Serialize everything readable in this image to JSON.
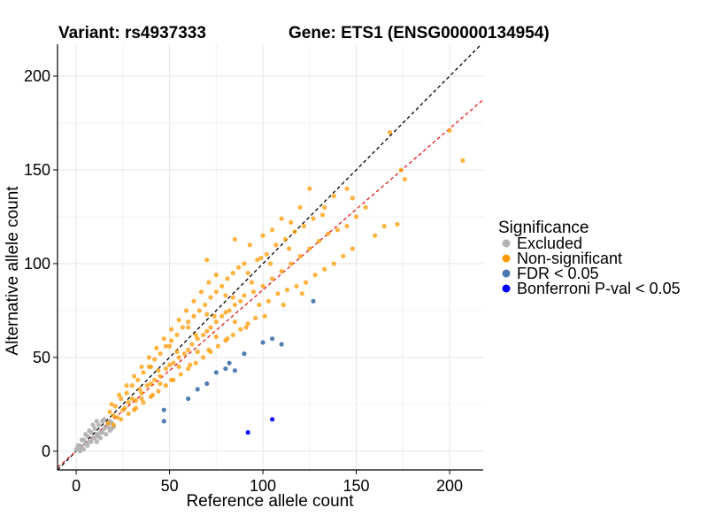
{
  "chart_data": {
    "type": "scatter",
    "title_left": "Variant: rs4937333",
    "title_right": "Gene: ETS1 (ENSG00000134954)",
    "xlabel": "Reference allele count",
    "ylabel": "Alternative allele count",
    "xlim": [
      -10,
      218
    ],
    "ylim": [
      -10,
      217
    ],
    "xticks": [
      0,
      50,
      100,
      150,
      200
    ],
    "yticks": [
      0,
      50,
      100,
      150,
      200
    ],
    "grid": true,
    "reference_lines": [
      {
        "name": "identity",
        "slope": 1.0,
        "intercept": 0,
        "color": "#000000",
        "dash": "dashed"
      },
      {
        "name": "fitted",
        "slope": 0.86,
        "intercept": 0,
        "color": "#e41a1c",
        "dash": "dashed"
      }
    ],
    "legend": {
      "title": "Significance",
      "position": "right",
      "entries": [
        {
          "label": "Excluded",
          "color": "#b3b3b3"
        },
        {
          "label": "Non-significant",
          "color": "#ff9900"
        },
        {
          "label": "FDR < 0.05",
          "color": "#4a78b0"
        },
        {
          "label": "Bonferroni P-val < 0.05",
          "color": "#0000ff"
        }
      ]
    },
    "series": [
      {
        "name": "Excluded",
        "color": "#b3b3b3",
        "points": [
          [
            1,
            1
          ],
          [
            2,
            3
          ],
          [
            3,
            2
          ],
          [
            4,
            6
          ],
          [
            5,
            4
          ],
          [
            6,
            8
          ],
          [
            7,
            5
          ],
          [
            8,
            10
          ],
          [
            9,
            7
          ],
          [
            10,
            12
          ],
          [
            11,
            9
          ],
          [
            12,
            14
          ],
          [
            13,
            10
          ],
          [
            14,
            16
          ],
          [
            15,
            12
          ],
          [
            16,
            9
          ],
          [
            17,
            13
          ],
          [
            18,
            11
          ],
          [
            19,
            15
          ],
          [
            20,
            13
          ],
          [
            3,
            6
          ],
          [
            5,
            9
          ],
          [
            7,
            11
          ],
          [
            9,
            14
          ],
          [
            11,
            16
          ],
          [
            6,
            3
          ],
          [
            8,
            5
          ],
          [
            10,
            7
          ],
          [
            12,
            8
          ],
          [
            14,
            10
          ],
          [
            4,
            1
          ],
          [
            2,
            0
          ],
          [
            0,
            1
          ],
          [
            1,
            3
          ],
          [
            15,
            17
          ],
          [
            17,
            15
          ],
          [
            19,
            12
          ],
          [
            13,
            7
          ],
          [
            11,
            5
          ],
          [
            18,
            16
          ]
        ]
      },
      {
        "name": "Non-significant",
        "color": "#ff9900",
        "points": [
          [
            17,
            15
          ],
          [
            20,
            19
          ],
          [
            22,
            18
          ],
          [
            25,
            22
          ],
          [
            28,
            26
          ],
          [
            30,
            28
          ],
          [
            32,
            27
          ],
          [
            35,
            31
          ],
          [
            38,
            35
          ],
          [
            40,
            36
          ],
          [
            42,
            38
          ],
          [
            45,
            40
          ],
          [
            48,
            44
          ],
          [
            50,
            46
          ],
          [
            52,
            47
          ],
          [
            55,
            50
          ],
          [
            58,
            52
          ],
          [
            60,
            54
          ],
          [
            62,
            57
          ],
          [
            65,
            60
          ],
          [
            68,
            62
          ],
          [
            70,
            64
          ],
          [
            72,
            66
          ],
          [
            75,
            69
          ],
          [
            78,
            72
          ],
          [
            80,
            74
          ],
          [
            82,
            75
          ],
          [
            85,
            78
          ],
          [
            88,
            80
          ],
          [
            90,
            83
          ],
          [
            18,
            21
          ],
          [
            21,
            24
          ],
          [
            24,
            28
          ],
          [
            27,
            31
          ],
          [
            30,
            35
          ],
          [
            33,
            38
          ],
          [
            36,
            42
          ],
          [
            39,
            45
          ],
          [
            42,
            49
          ],
          [
            45,
            52
          ],
          [
            48,
            56
          ],
          [
            51,
            59
          ],
          [
            54,
            62
          ],
          [
            57,
            66
          ],
          [
            60,
            69
          ],
          [
            63,
            72
          ],
          [
            66,
            75
          ],
          [
            69,
            78
          ],
          [
            72,
            82
          ],
          [
            75,
            85
          ],
          [
            78,
            88
          ],
          [
            81,
            92
          ],
          [
            84,
            95
          ],
          [
            87,
            98
          ],
          [
            90,
            100
          ],
          [
            20,
            14
          ],
          [
            24,
            17
          ],
          [
            28,
            20
          ],
          [
            32,
            23
          ],
          [
            36,
            26
          ],
          [
            40,
            29
          ],
          [
            44,
            32
          ],
          [
            48,
            35
          ],
          [
            52,
            38
          ],
          [
            56,
            41
          ],
          [
            60,
            44
          ],
          [
            64,
            47
          ],
          [
            68,
            50
          ],
          [
            72,
            53
          ],
          [
            76,
            56
          ],
          [
            80,
            59
          ],
          [
            84,
            62
          ],
          [
            88,
            65
          ],
          [
            92,
            68
          ],
          [
            96,
            71
          ],
          [
            19,
            25
          ],
          [
            23,
            30
          ],
          [
            27,
            35
          ],
          [
            31,
            40
          ],
          [
            35,
            45
          ],
          [
            39,
            50
          ],
          [
            43,
            55
          ],
          [
            47,
            60
          ],
          [
            51,
            65
          ],
          [
            55,
            70
          ],
          [
            59,
            75
          ],
          [
            63,
            80
          ],
          [
            67,
            85
          ],
          [
            71,
            90
          ],
          [
            75,
            94
          ],
          [
            95,
            85
          ],
          [
            100,
            88
          ],
          [
            105,
            92
          ],
          [
            110,
            96
          ],
          [
            115,
            100
          ],
          [
            120,
            104
          ],
          [
            125,
            108
          ],
          [
            130,
            112
          ],
          [
            135,
            116
          ],
          [
            140,
            118
          ],
          [
            92,
            95
          ],
          [
            97,
            102
          ],
          [
            102,
            105
          ],
          [
            107,
            110
          ],
          [
            112,
            113
          ],
          [
            117,
            117
          ],
          [
            122,
            120
          ],
          [
            127,
            124
          ],
          [
            132,
            126
          ],
          [
            100,
            115
          ],
          [
            105,
            118
          ],
          [
            110,
            124
          ],
          [
            115,
            122
          ],
          [
            120,
            130
          ],
          [
            98,
            78
          ],
          [
            103,
            80
          ],
          [
            108,
            84
          ],
          [
            113,
            86
          ],
          [
            118,
            88
          ],
          [
            123,
            90
          ],
          [
            128,
            94
          ],
          [
            133,
            97
          ],
          [
            138,
            100
          ],
          [
            143,
            104
          ],
          [
            148,
            108
          ],
          [
            70,
            102
          ],
          [
            85,
            113
          ],
          [
            93,
            110
          ],
          [
            99,
            103
          ],
          [
            125,
            140
          ],
          [
            133,
            130
          ],
          [
            138,
            136
          ],
          [
            145,
            120
          ],
          [
            150,
            125
          ],
          [
            155,
            130
          ],
          [
            148,
            135
          ],
          [
            145,
            140
          ],
          [
            160,
            115
          ],
          [
            165,
            120
          ],
          [
            168,
            170
          ],
          [
            172,
            121
          ],
          [
            174,
            150
          ],
          [
            176,
            145
          ],
          [
            200,
            171
          ],
          [
            207,
            155
          ],
          [
            35,
            28
          ],
          [
            45,
            36
          ],
          [
            55,
            45
          ],
          [
            65,
            53
          ],
          [
            75,
            61
          ],
          [
            85,
            69
          ],
          [
            40,
            45
          ],
          [
            50,
            56
          ],
          [
            60,
            66
          ],
          [
            70,
            73
          ],
          [
            80,
            83
          ],
          [
            26,
            23
          ],
          [
            34,
            33
          ],
          [
            44,
            43
          ],
          [
            54,
            53
          ],
          [
            64,
            62
          ],
          [
            74,
            72
          ],
          [
            84,
            82
          ],
          [
            94,
            90
          ],
          [
            104,
            100
          ],
          [
            114,
            108
          ],
          [
            31,
            22
          ],
          [
            41,
            30
          ],
          [
            51,
            38
          ],
          [
            61,
            46
          ],
          [
            71,
            54
          ],
          [
            81,
            60
          ],
          [
            91,
            66
          ],
          [
            101,
            72
          ],
          [
            111,
            78
          ],
          [
            121,
            84
          ]
        ]
      },
      {
        "name": "FDR < 0.05",
        "color": "#4a78b0",
        "points": [
          [
            47,
            22
          ],
          [
            47,
            16
          ],
          [
            60,
            28
          ],
          [
            65,
            33
          ],
          [
            70,
            36
          ],
          [
            75,
            42
          ],
          [
            80,
            44
          ],
          [
            82,
            47
          ],
          [
            85,
            43
          ],
          [
            90,
            52
          ],
          [
            100,
            58
          ],
          [
            105,
            60
          ],
          [
            110,
            57
          ],
          [
            127,
            80
          ]
        ]
      },
      {
        "name": "Bonferroni P-val < 0.05",
        "color": "#0000ff",
        "points": [
          [
            92,
            10
          ],
          [
            105,
            17
          ]
        ]
      }
    ]
  }
}
